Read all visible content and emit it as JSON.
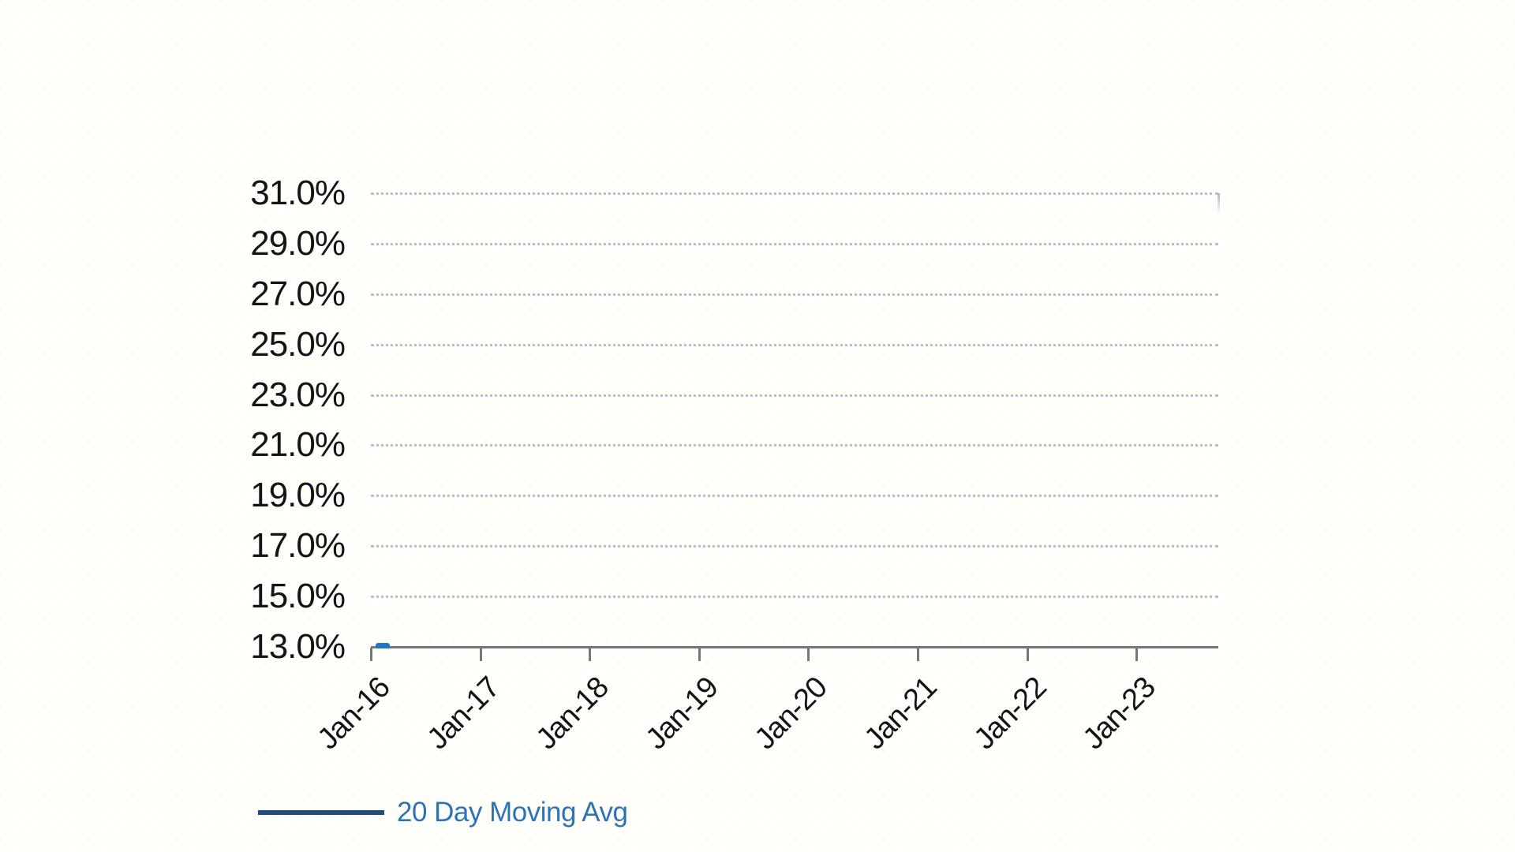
{
  "chart_data": {
    "type": "line",
    "title": "",
    "xlabel": "",
    "ylabel": "",
    "y_ticks": [
      "31.0%",
      "29.0%",
      "27.0%",
      "25.0%",
      "23.0%",
      "21.0%",
      "19.0%",
      "17.0%",
      "15.0%",
      "13.0%"
    ],
    "x_ticks": [
      "Jan-16",
      "Jan-17",
      "Jan-18",
      "Jan-19",
      "Jan-20",
      "Jan-21",
      "Jan-22",
      "Jan-23"
    ],
    "ylim": [
      13.0,
      31.0
    ],
    "y_step": 2.0,
    "grid": "horizontal-dotted",
    "legend_position": "bottom-left",
    "series": [
      {
        "name": "20 Day Moving Avg",
        "color": "#1a78c4",
        "visible_points": [
          {
            "x": "Jan-16",
            "y": 13.1
          },
          {
            "x": "Feb-16",
            "y": 13.0
          }
        ],
        "note": "only a short segment near Jan-16 at ~13% is visible; rest of series at/below axis minimum"
      }
    ]
  },
  "legend": {
    "label": "20 Day Moving Avg",
    "swatch_color": "#1f4e79"
  },
  "colors": {
    "gridline": "#a4a7b9",
    "axis": "#75767e",
    "y_label_text": "#141414",
    "x_label_text": "#141414",
    "legend_text": "#2e74b5",
    "series_blue": "#1a78c4",
    "background": "#fffffe",
    "watermark_dots": "#ffff00"
  }
}
